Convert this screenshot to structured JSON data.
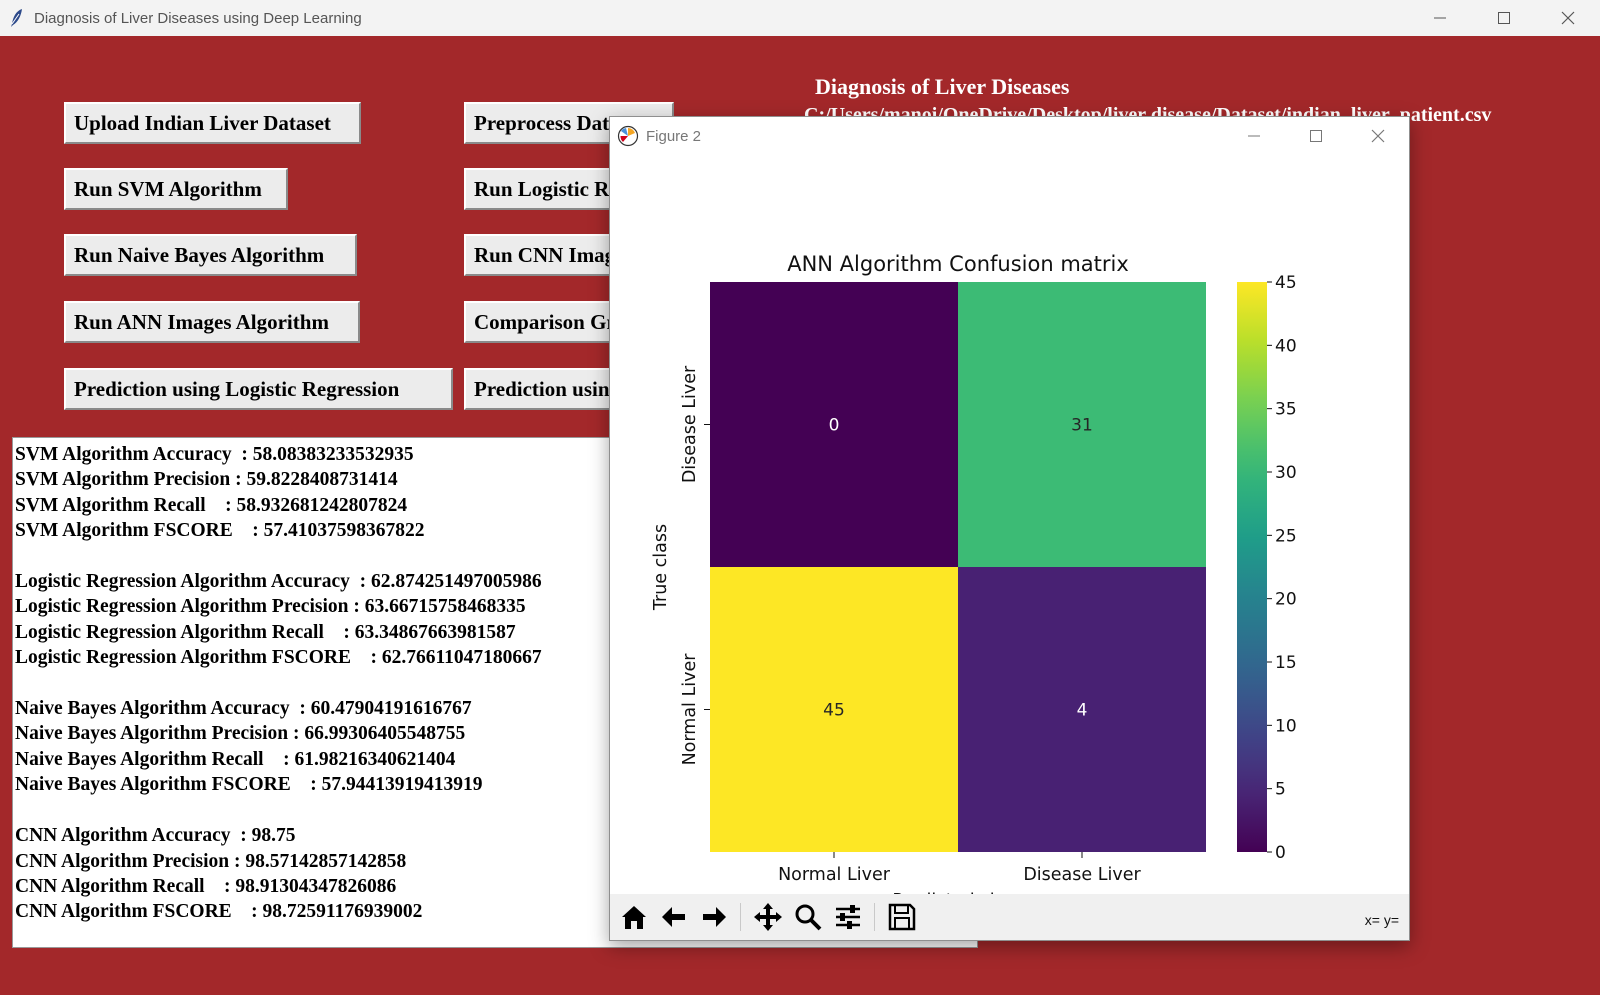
{
  "window": {
    "title": "Diagnosis of Liver Diseases using Deep Learning"
  },
  "heading": "Diagnosis of Liver Diseases",
  "dataset_path": "C:/Users/manoi/OneDrive/Desktop/liver disease/Dataset/indian_liver_patient.csv",
  "buttons": {
    "upload": "Upload Indian Liver Dataset",
    "preprocess": "Preprocess Dataset",
    "svm": "Run SVM Algorithm",
    "logistic": "Run Logistic Regression Algorithm",
    "naive_bayes": "Run Naive Bayes Algorithm",
    "cnn": "Run CNN Images Algorithm",
    "ann": "Run ANN Images Algorithm",
    "comparison": "Comparison Graph",
    "predict_lr": "Prediction using Logistic Regression",
    "predict_other": "Prediction using CNN"
  },
  "output_text": "SVM Algorithm Accuracy  : 58.08383233532935\nSVM Algorithm Precision : 59.8228408731414\nSVM Algorithm Recall    : 58.932681242807824\nSVM Algorithm FSCORE    : 57.41037598367822\n\nLogistic Regression Algorithm Accuracy  : 62.874251497005986\nLogistic Regression Algorithm Precision : 63.66715758468335\nLogistic Regression Algorithm Recall    : 63.34867663981587\nLogistic Regression Algorithm FSCORE    : 62.76611047180667\n\nNaive Bayes Algorithm Accuracy  : 60.47904191616767\nNaive Bayes Algorithm Precision : 66.99306405548755\nNaive Bayes Algorithm Recall    : 61.98216340621404\nNaive Bayes Algorithm FSCORE    : 57.94413919413919\n\nCNN Algorithm Accuracy  : 98.75\nCNN Algorithm Precision : 98.57142857142858\nCNN Algorithm Recall    : 98.91304347826086\nCNN Algorithm FSCORE    : 98.72591176939002",
  "figure": {
    "window_title": "Figure 2",
    "coords": "x= y=",
    "toolbar_icons": [
      "home-icon",
      "back-icon",
      "forward-icon",
      "pan-icon",
      "zoom-icon",
      "configure-icon",
      "save-icon"
    ]
  },
  "chart_data": {
    "type": "heatmap",
    "title": "ANN Algorithm Confusion matrix",
    "xlabel": "Predicted class",
    "ylabel": "True class",
    "x_categories": [
      "Normal Liver",
      "Disease Liver"
    ],
    "y_categories": [
      "Disease Liver",
      "Normal Liver"
    ],
    "matrix": [
      [
        0,
        31
      ],
      [
        45,
        4
      ]
    ],
    "colormap": "viridis",
    "colorbar": {
      "min": 0,
      "max": 45,
      "ticks": [
        0,
        5,
        10,
        15,
        20,
        25,
        30,
        35,
        40,
        45
      ]
    },
    "colors": {
      "0": "#440154",
      "4": "#482173",
      "31": "#3cbb75",
      "45": "#fde725"
    }
  }
}
